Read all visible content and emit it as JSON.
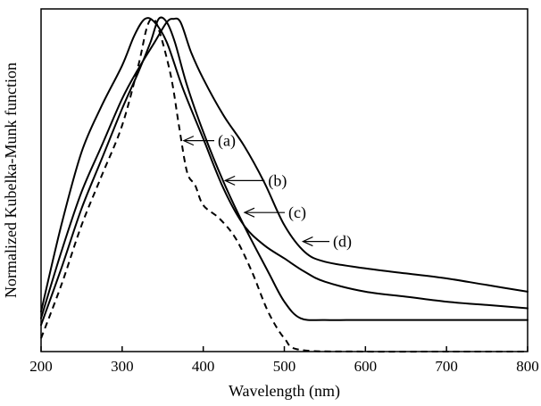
{
  "chart_data": {
    "type": "line",
    "title": "",
    "xlabel": "Wavelength (nm)",
    "ylabel": "Normalized Kubelka-Munk function",
    "xlim": [
      200,
      800
    ],
    "ylim": [
      0,
      1.03
    ],
    "x_ticks": [
      200,
      300,
      400,
      500,
      600,
      700,
      800
    ],
    "y_ticks_labeled": false,
    "grid": false,
    "legend": "none",
    "series": [
      {
        "label": "(a)",
        "style": "dashed",
        "points": [
          [
            200,
            0.04
          ],
          [
            225,
            0.2
          ],
          [
            250,
            0.38
          ],
          [
            275,
            0.53
          ],
          [
            300,
            0.68
          ],
          [
            320,
            0.86
          ],
          [
            330,
            0.97
          ],
          [
            337,
            1.0
          ],
          [
            345,
            0.97
          ],
          [
            360,
            0.83
          ],
          [
            370,
            0.68
          ],
          [
            380,
            0.54
          ],
          [
            390,
            0.5
          ],
          [
            400,
            0.44
          ],
          [
            420,
            0.4
          ],
          [
            440,
            0.34
          ],
          [
            460,
            0.24
          ],
          [
            480,
            0.12
          ],
          [
            500,
            0.04
          ],
          [
            520,
            0.005
          ],
          [
            600,
            0.0
          ],
          [
            700,
            0.0
          ],
          [
            800,
            0.0
          ]
        ]
      },
      {
        "label": "(b)",
        "style": "solid",
        "points": [
          [
            200,
            0.08
          ],
          [
            225,
            0.25
          ],
          [
            250,
            0.43
          ],
          [
            275,
            0.58
          ],
          [
            300,
            0.73
          ],
          [
            320,
            0.84
          ],
          [
            335,
            0.93
          ],
          [
            345,
            1.0
          ],
          [
            355,
            0.99
          ],
          [
            365,
            0.93
          ],
          [
            380,
            0.8
          ],
          [
            400,
            0.66
          ],
          [
            425,
            0.51
          ],
          [
            450,
            0.38
          ],
          [
            480,
            0.24
          ],
          [
            500,
            0.15
          ],
          [
            520,
            0.1
          ],
          [
            550,
            0.095
          ],
          [
            600,
            0.095
          ],
          [
            700,
            0.095
          ],
          [
            800,
            0.095
          ]
        ]
      },
      {
        "label": "(c)",
        "style": "solid",
        "points": [
          [
            200,
            0.12
          ],
          [
            225,
            0.38
          ],
          [
            250,
            0.6
          ],
          [
            275,
            0.74
          ],
          [
            300,
            0.86
          ],
          [
            315,
            0.95
          ],
          [
            328,
            1.0
          ],
          [
            340,
            0.99
          ],
          [
            355,
            0.93
          ],
          [
            375,
            0.79
          ],
          [
            400,
            0.64
          ],
          [
            425,
            0.49
          ],
          [
            450,
            0.38
          ],
          [
            475,
            0.32
          ],
          [
            500,
            0.28
          ],
          [
            525,
            0.24
          ],
          [
            550,
            0.21
          ],
          [
            600,
            0.18
          ],
          [
            650,
            0.165
          ],
          [
            700,
            0.15
          ],
          [
            750,
            0.14
          ],
          [
            800,
            0.13
          ]
        ]
      },
      {
        "label": "(d)",
        "style": "solid",
        "points": [
          [
            200,
            0.1
          ],
          [
            225,
            0.3
          ],
          [
            250,
            0.48
          ],
          [
            275,
            0.62
          ],
          [
            300,
            0.76
          ],
          [
            320,
            0.85
          ],
          [
            340,
            0.93
          ],
          [
            355,
            0.99
          ],
          [
            363,
            1.0
          ],
          [
            372,
            0.99
          ],
          [
            385,
            0.9
          ],
          [
            400,
            0.82
          ],
          [
            425,
            0.71
          ],
          [
            450,
            0.62
          ],
          [
            475,
            0.51
          ],
          [
            500,
            0.38
          ],
          [
            525,
            0.3
          ],
          [
            550,
            0.27
          ],
          [
            600,
            0.25
          ],
          [
            650,
            0.235
          ],
          [
            700,
            0.22
          ],
          [
            750,
            0.2
          ],
          [
            800,
            0.18
          ]
        ]
      }
    ],
    "annotations": [
      {
        "text": "(a)",
        "arrow_x": 376,
        "arrow_y": 0.634,
        "text_x": 418,
        "text_y": 0.634
      },
      {
        "text": "(b)",
        "arrow_x": 427,
        "arrow_y": 0.514,
        "text_x": 480,
        "text_y": 0.514
      },
      {
        "text": "(c)",
        "arrow_x": 451,
        "arrow_y": 0.418,
        "text_x": 505,
        "text_y": 0.418
      },
      {
        "text": "(d)",
        "arrow_x": 523,
        "arrow_y": 0.331,
        "text_x": 560,
        "text_y": 0.331
      }
    ]
  }
}
